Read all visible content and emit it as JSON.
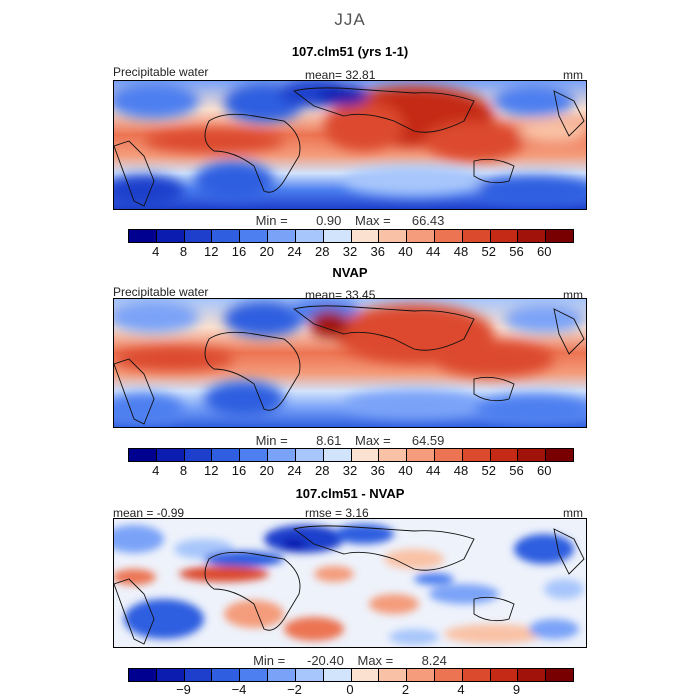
{
  "season": "JJA",
  "panels": [
    {
      "title": "107.clm51 (yrs 1-1)",
      "left_label": "Precipitable water",
      "mean_text": "mean=  32.81",
      "units": "mm",
      "min_label": "Min =",
      "min_value": "0.90",
      "max_label": "Max =",
      "max_value": "66.43"
    },
    {
      "title": "NVAP",
      "left_label": "Precipitable water",
      "mean_text": "mean=  33.45",
      "units": "mm",
      "min_label": "Min =",
      "min_value": "8.61",
      "max_label": "Max =",
      "max_value": "64.59"
    },
    {
      "title": "107.clm51 - NVAP",
      "left_label": "mean =  -0.99",
      "mean_text": "rmse =   3.16",
      "units": "mm",
      "min_label": "Min =",
      "min_value": "-20.40",
      "max_label": "Max =",
      "max_value": "8.24"
    }
  ],
  "colorbars": {
    "absolute": {
      "colors": [
        "#000090",
        "#0b1cb0",
        "#1e3fcc",
        "#2f5fe0",
        "#4d7ff0",
        "#7aa3f8",
        "#a7c6fb",
        "#d2e3fc",
        "#fbe1cf",
        "#f9c2a6",
        "#f49c7b",
        "#ec7453",
        "#dc4a2d",
        "#c42a15",
        "#a0120a",
        "#780000"
      ],
      "ticks": [
        "4",
        "8",
        "12",
        "16",
        "20",
        "24",
        "28",
        "32",
        "36",
        "40",
        "44",
        "48",
        "52",
        "56",
        "60"
      ]
    },
    "difference": {
      "colors": [
        "#000090",
        "#0b1cb0",
        "#1e3fcc",
        "#2f5fe0",
        "#4d7ff0",
        "#7aa3f8",
        "#a7c6fb",
        "#d2e3fc",
        "#fbe1cf",
        "#f9c2a6",
        "#f49c7b",
        "#ec7453",
        "#dc4a2d",
        "#c42a15",
        "#a0120a",
        "#780000"
      ],
      "ticks": [
        "-9",
        "-4",
        "-2",
        "0",
        "2",
        "4",
        "9"
      ],
      "tick_slots": [
        2,
        4,
        6,
        8,
        10,
        12,
        14
      ]
    }
  },
  "chart_data": [
    {
      "type": "heatmap",
      "title": "107.clm51 (yrs 1-1)",
      "variable": "Precipitable water",
      "units": "mm",
      "mean": 32.81,
      "min": 0.9,
      "max": 66.43,
      "contour_levels": [
        4,
        8,
        12,
        16,
        20,
        24,
        28,
        32,
        36,
        40,
        44,
        48,
        52,
        56,
        60
      ]
    },
    {
      "type": "heatmap",
      "title": "NVAP",
      "variable": "Precipitable water",
      "units": "mm",
      "mean": 33.45,
      "min": 8.61,
      "max": 64.59,
      "contour_levels": [
        4,
        8,
        12,
        16,
        20,
        24,
        28,
        32,
        36,
        40,
        44,
        48,
        52,
        56,
        60
      ]
    },
    {
      "type": "heatmap",
      "title": "107.clm51 - NVAP",
      "units": "mm",
      "mean": -0.99,
      "rmse": 3.16,
      "min": -20.4,
      "max": 8.24,
      "contour_levels": [
        -9,
        -4,
        -2,
        0,
        2,
        4,
        9
      ]
    }
  ]
}
